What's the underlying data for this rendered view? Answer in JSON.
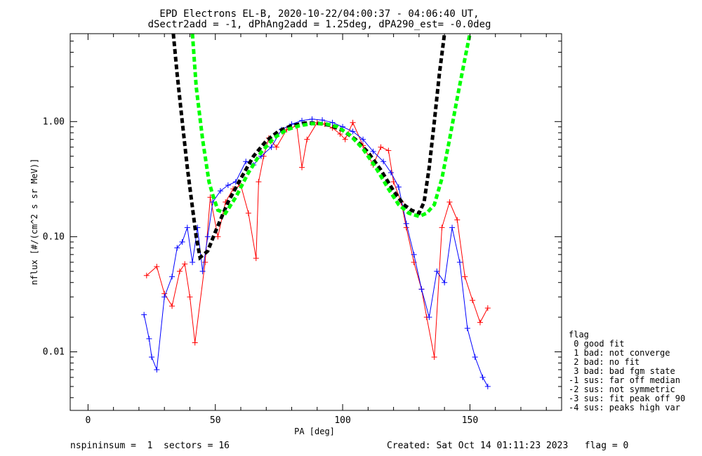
{
  "chart_data": {
    "type": "line",
    "title": "EPD Electrons EL-B, 2020-10-22/04:00:37 - 04:06:40 UT,",
    "subtitle": "dSectr2add = -1, dPhAng2add = 1.25deg, dPA290_est=  -0.0deg",
    "xlabel": "PA [deg]",
    "ylabel": "nflux [#/(cm^2 s sr MeV)]",
    "xlim": [
      -7,
      186
    ],
    "ylim": [
      0.0031,
      5.8
    ],
    "yscale": "log",
    "grid": false,
    "x_ticks": [
      {
        "value": 0,
        "label": "0"
      },
      {
        "value": 50,
        "label": "50"
      },
      {
        "value": 100,
        "label": "100"
      },
      {
        "value": 150,
        "label": "150"
      }
    ],
    "y_ticks": [
      {
        "value": 0.01,
        "label": "0.01"
      },
      {
        "value": 0.1,
        "label": "0.10"
      },
      {
        "value": 1.0,
        "label": "1.00"
      }
    ],
    "series": [
      {
        "color": "#ff0000",
        "style": "line-plus",
        "points": [
          [
            23,
            0.046
          ],
          [
            27,
            0.055
          ],
          [
            30,
            0.032
          ],
          [
            33,
            0.025
          ],
          [
            36,
            0.05
          ],
          [
            38,
            0.058
          ],
          [
            40,
            0.03
          ],
          [
            42,
            0.012
          ],
          [
            46,
            0.06
          ],
          [
            48,
            0.22
          ],
          [
            51,
            0.1
          ],
          [
            54,
            0.2
          ],
          [
            57,
            0.26
          ],
          [
            60,
            0.28
          ],
          [
            63,
            0.16
          ],
          [
            66,
            0.065
          ],
          [
            67,
            0.3
          ],
          [
            69,
            0.5
          ],
          [
            71,
            0.72
          ],
          [
            74,
            0.6
          ],
          [
            78,
            0.85
          ],
          [
            82,
            0.92
          ],
          [
            84,
            0.4
          ],
          [
            86,
            0.7
          ],
          [
            90,
            0.98
          ],
          [
            93,
            0.95
          ],
          [
            96,
            0.88
          ],
          [
            99,
            0.78
          ],
          [
            101,
            0.7
          ],
          [
            104,
            0.98
          ],
          [
            108,
            0.62
          ],
          [
            112,
            0.42
          ],
          [
            115,
            0.6
          ],
          [
            118,
            0.56
          ],
          [
            120,
            0.3
          ],
          [
            123,
            0.2
          ],
          [
            125,
            0.12
          ],
          [
            128,
            0.06
          ],
          [
            131,
            0.035
          ],
          [
            133,
            0.02
          ],
          [
            136,
            0.009
          ],
          [
            139,
            0.12
          ],
          [
            142,
            0.2
          ],
          [
            145,
            0.14
          ],
          [
            148,
            0.045
          ],
          [
            151,
            0.028
          ],
          [
            154,
            0.018
          ],
          [
            157,
            0.024
          ]
        ]
      },
      {
        "color": "#0000ff",
        "style": "line-plus",
        "points": [
          [
            22,
            0.021
          ],
          [
            24,
            0.013
          ],
          [
            25,
            0.009
          ],
          [
            27,
            0.007
          ],
          [
            30,
            0.03
          ],
          [
            33,
            0.045
          ],
          [
            35,
            0.08
          ],
          [
            37,
            0.09
          ],
          [
            39,
            0.12
          ],
          [
            41,
            0.06
          ],
          [
            43,
            0.12
          ],
          [
            45,
            0.05
          ],
          [
            47,
            0.1
          ],
          [
            49,
            0.2
          ],
          [
            52,
            0.25
          ],
          [
            55,
            0.28
          ],
          [
            58,
            0.3
          ],
          [
            62,
            0.45
          ],
          [
            65,
            0.42
          ],
          [
            68,
            0.5
          ],
          [
            72,
            0.6
          ],
          [
            76,
            0.85
          ],
          [
            80,
            0.95
          ],
          [
            84,
            1.02
          ],
          [
            88,
            1.05
          ],
          [
            92,
            1.03
          ],
          [
            96,
            0.98
          ],
          [
            100,
            0.9
          ],
          [
            104,
            0.82
          ],
          [
            108,
            0.7
          ],
          [
            112,
            0.55
          ],
          [
            116,
            0.45
          ],
          [
            119,
            0.36
          ],
          [
            122,
            0.27
          ],
          [
            125,
            0.13
          ],
          [
            128,
            0.07
          ],
          [
            131,
            0.035
          ],
          [
            134,
            0.02
          ],
          [
            137,
            0.05
          ],
          [
            140,
            0.04
          ],
          [
            143,
            0.12
          ],
          [
            146,
            0.06
          ],
          [
            149,
            0.016
          ],
          [
            152,
            0.009
          ],
          [
            155,
            0.006
          ],
          [
            157,
            0.005
          ]
        ]
      },
      {
        "color": "#000000",
        "style": "dashed-thick",
        "points": [
          [
            33.5,
            5.8
          ],
          [
            35,
            2.6
          ],
          [
            37,
            1.0
          ],
          [
            39,
            0.4
          ],
          [
            41,
            0.18
          ],
          [
            42.5,
            0.1
          ],
          [
            44,
            0.066
          ],
          [
            47,
            0.075
          ],
          [
            50,
            0.11
          ],
          [
            55,
            0.2
          ],
          [
            60,
            0.32
          ],
          [
            65,
            0.5
          ],
          [
            70,
            0.68
          ],
          [
            75,
            0.83
          ],
          [
            80,
            0.92
          ],
          [
            85,
            0.97
          ],
          [
            90,
            0.97
          ],
          [
            95,
            0.93
          ],
          [
            100,
            0.84
          ],
          [
            105,
            0.7
          ],
          [
            110,
            0.54
          ],
          [
            115,
            0.38
          ],
          [
            120,
            0.25
          ],
          [
            124,
            0.19
          ],
          [
            127,
            0.17
          ],
          [
            130,
            0.16
          ],
          [
            132,
            0.2
          ],
          [
            134,
            0.4
          ],
          [
            136,
            1.0
          ],
          [
            138,
            2.6
          ],
          [
            140,
            5.8
          ]
        ]
      },
      {
        "color": "#00ff00",
        "style": "dashed-thick",
        "points": [
          [
            41,
            5.8
          ],
          [
            42.5,
            2.0
          ],
          [
            45,
            0.7
          ],
          [
            47.5,
            0.3
          ],
          [
            49,
            0.23
          ],
          [
            51,
            0.17
          ],
          [
            54,
            0.16
          ],
          [
            58,
            0.22
          ],
          [
            63,
            0.36
          ],
          [
            68,
            0.54
          ],
          [
            73,
            0.72
          ],
          [
            78,
            0.85
          ],
          [
            83,
            0.92
          ],
          [
            88,
            0.96
          ],
          [
            93,
            0.96
          ],
          [
            98,
            0.9
          ],
          [
            103,
            0.76
          ],
          [
            108,
            0.58
          ],
          [
            113,
            0.4
          ],
          [
            118,
            0.26
          ],
          [
            122,
            0.19
          ],
          [
            126,
            0.16
          ],
          [
            130,
            0.15
          ],
          [
            133,
            0.16
          ],
          [
            136,
            0.19
          ],
          [
            139,
            0.32
          ],
          [
            142,
            0.7
          ],
          [
            145,
            1.6
          ],
          [
            148,
            3.5
          ],
          [
            150,
            5.8
          ]
        ]
      }
    ],
    "legend": {
      "placement": "right",
      "title": "flag",
      "entries": [
        " 0 good fit",
        " 1 bad: not converge",
        " 2 bad: no fit",
        " 3 bad: bad fgm state",
        "-1 sus: far off median",
        "-2 sus: not symmetric",
        "-3 sus: fit peak off 90",
        "-4 sus: peaks high var"
      ]
    }
  },
  "footer": {
    "left": "nspininsum =  1  sectors = 16",
    "right": "Created: Sat Oct 14 01:11:23 2023   flag = 0"
  }
}
